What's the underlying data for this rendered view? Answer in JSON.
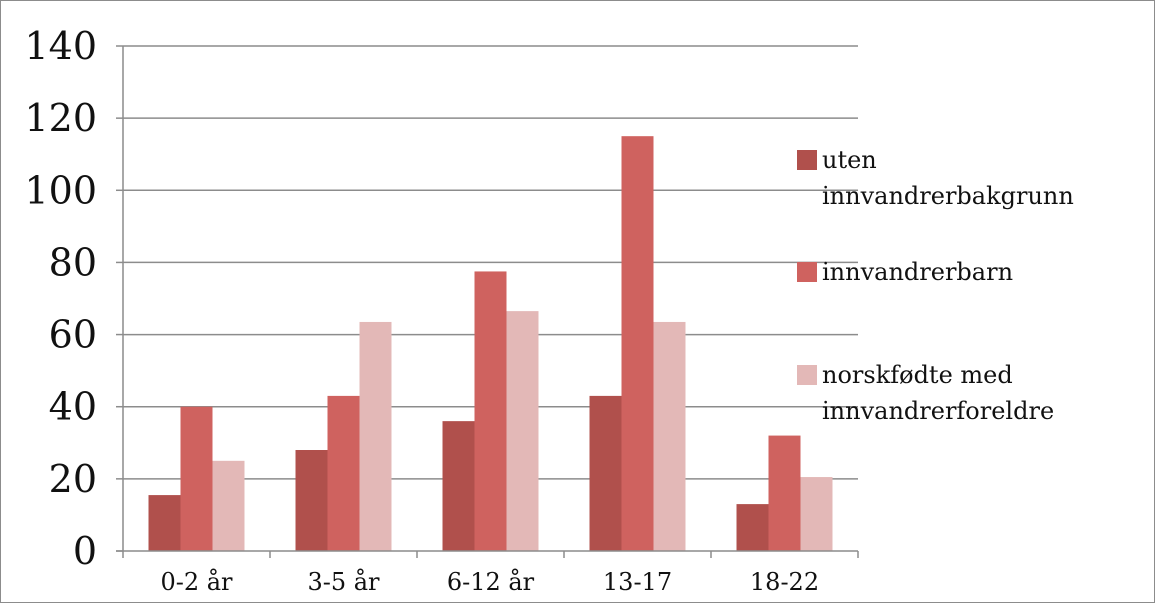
{
  "chart_data": {
    "type": "bar",
    "title": "",
    "xlabel": "",
    "ylabel": "",
    "ylim": [
      0,
      140
    ],
    "yticks": [
      0,
      20,
      40,
      60,
      80,
      100,
      120,
      140
    ],
    "grid": true,
    "legend_position": "right",
    "categories": [
      "0-2 år",
      "3-5 år",
      "6-12 år",
      "13-17",
      "18-22"
    ],
    "series": [
      {
        "name_lines": [
          "uten",
          "innvandrerbakgrunn"
        ],
        "color": "#b0504c",
        "values": [
          15.5,
          28,
          36,
          43,
          13
        ]
      },
      {
        "name_lines": [
          "innvandrerbarn"
        ],
        "color": "#cf625f",
        "values": [
          40,
          43,
          77.5,
          115,
          32
        ]
      },
      {
        "name_lines": [
          "norskfødte med",
          "innvandrerforeldre"
        ],
        "color": "#e3b8b7",
        "values": [
          25,
          63.5,
          66.5,
          63.5,
          20.5
        ]
      }
    ]
  }
}
